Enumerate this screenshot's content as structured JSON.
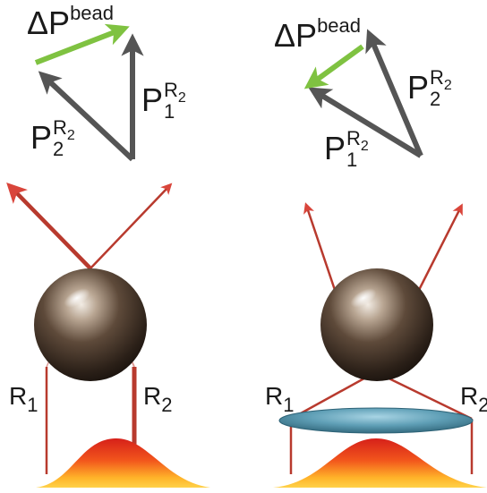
{
  "left_panel": {
    "delta_p_symbol": "ΔP",
    "delta_p_superscript": "bead",
    "vector_a": {
      "symbol": "P",
      "superscript": "R",
      "superscript_sub": "2",
      "subscript": "1"
    },
    "vector_b": {
      "symbol": "P",
      "superscript": "R",
      "superscript_sub": "2",
      "subscript": "2"
    },
    "ray_label_left": {
      "symbol": "R",
      "subscript": "1"
    },
    "ray_label_right": {
      "symbol": "R",
      "subscript": "2"
    }
  },
  "right_panel": {
    "delta_p_symbol": "ΔP",
    "delta_p_superscript": "bead",
    "vector_a": {
      "symbol": "P",
      "superscript": "R",
      "superscript_sub": "2",
      "subscript": "2"
    },
    "vector_b": {
      "symbol": "P",
      "superscript": "R",
      "superscript_sub": "2",
      "subscript": "1"
    },
    "ray_label_left": {
      "symbol": "R",
      "subscript": "1"
    },
    "ray_label_right": {
      "symbol": "R",
      "subscript": "2"
    }
  },
  "colors": {
    "vector_gray": "#555555",
    "delta_p_green": "#7fc241",
    "ray_red": "#b83a2e",
    "arrow_red": "#d9453b",
    "lens_blue": "#4d8fa8"
  }
}
